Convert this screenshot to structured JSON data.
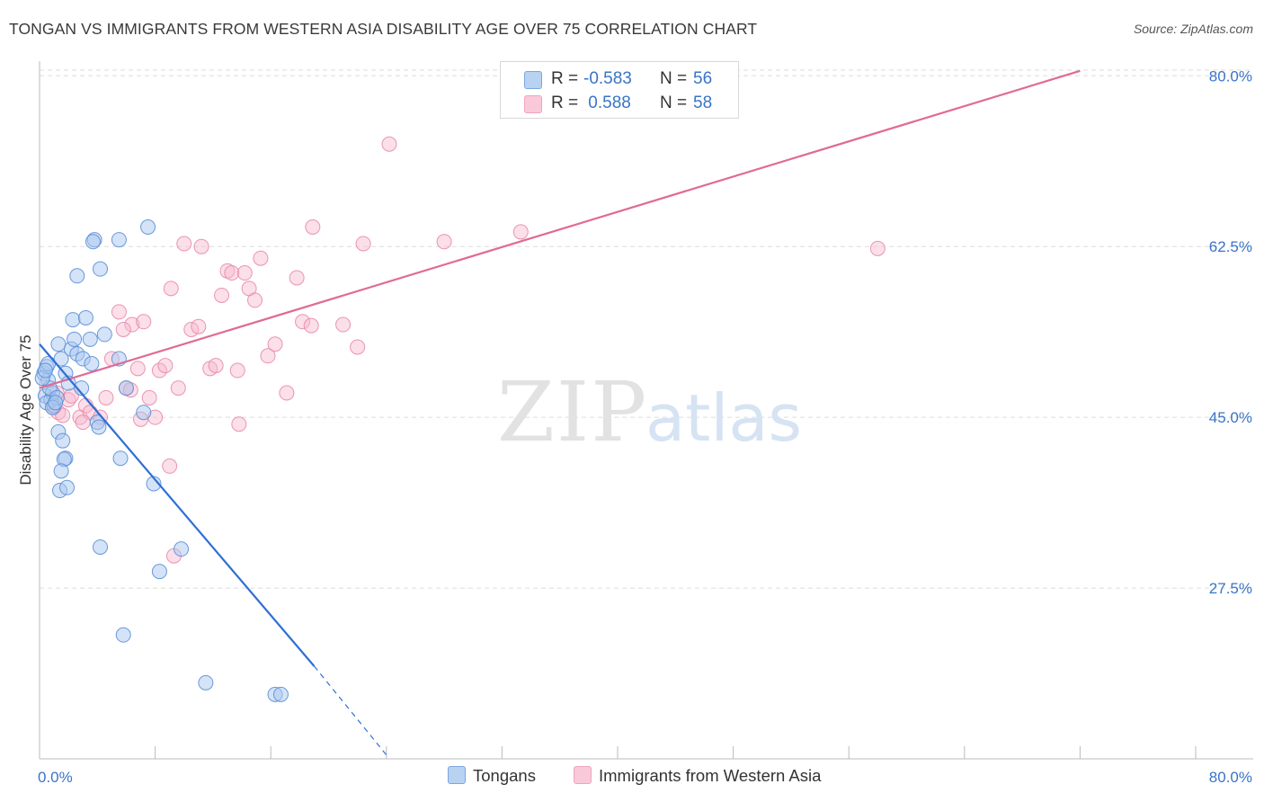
{
  "header": {
    "title": "TONGAN VS IMMIGRANTS FROM WESTERN ASIA DISABILITY AGE OVER 75 CORRELATION CHART",
    "source": "Source: ZipAtlas.com"
  },
  "legend": {
    "rows": [
      {
        "r_label": "R = ",
        "r_value": "-0.583",
        "n_label": "N = ",
        "n_value": "56"
      },
      {
        "r_label": "R = ",
        "r_value": " 0.588",
        "n_label": "N = ",
        "n_value": "58"
      }
    ]
  },
  "bottom_legend": {
    "series1": "Tongans",
    "series2": "Immigrants from Western Asia"
  },
  "watermark": {
    "zip": "ZIP",
    "atlas": "atlas"
  },
  "colors": {
    "tongans_fill": "#a9c8ef",
    "tongans_stroke": "#5b8fd6",
    "tongans_line": "#2e6fd4",
    "immigrants_fill": "#f6b9cf",
    "immigrants_stroke": "#e98aaa",
    "immigrants_line": "#e06a96",
    "axis_label": "#3a74c6",
    "grid": "#dddddd"
  },
  "chart_data": {
    "type": "scatter",
    "title": "TONGAN VS IMMIGRANTS FROM WESTERN ASIA DISABILITY AGE OVER 75 CORRELATION CHART",
    "xlabel": "",
    "ylabel": "Disability Age Over 75",
    "xlim": [
      0,
      80
    ],
    "ylim": [
      10,
      81.5
    ],
    "x_tick_labels": [
      "0.0%",
      "80.0%"
    ],
    "y_ticks": [
      27.5,
      45.0,
      62.5,
      80.0
    ],
    "y_tick_labels": [
      "27.5%",
      "45.0%",
      "62.5%",
      "80.0%"
    ],
    "grid": true,
    "legend_position": "top-center",
    "series": [
      {
        "name": "Tongans",
        "r": -0.583,
        "n": 56,
        "trend": {
          "x": [
            0,
            19
          ],
          "y": [
            52.5,
            19.5
          ],
          "dashed_to": {
            "x": 24,
            "y": 10.4
          }
        },
        "points": [
          [
            0.3,
            49.5
          ],
          [
            0.5,
            50.2
          ],
          [
            0.6,
            48.8
          ],
          [
            0.4,
            47.2
          ],
          [
            0.8,
            46.8
          ],
          [
            0.9,
            47.5
          ],
          [
            0.5,
            46.5
          ],
          [
            1.0,
            46.2
          ],
          [
            0.7,
            48.0
          ],
          [
            0.2,
            49.0
          ],
          [
            1.2,
            47.0
          ],
          [
            0.6,
            50.5
          ],
          [
            1.5,
            51.0
          ],
          [
            1.8,
            49.5
          ],
          [
            2.0,
            48.5
          ],
          [
            2.2,
            52.0
          ],
          [
            2.4,
            53.0
          ],
          [
            2.3,
            55.0
          ],
          [
            2.6,
            51.5
          ],
          [
            3.0,
            51.0
          ],
          [
            3.2,
            55.2
          ],
          [
            3.5,
            53.0
          ],
          [
            3.6,
            50.5
          ],
          [
            4.5,
            53.5
          ],
          [
            5.5,
            51.0
          ],
          [
            6.0,
            48.0
          ],
          [
            7.2,
            45.5
          ],
          [
            7.5,
            64.5
          ],
          [
            5.5,
            63.2
          ],
          [
            3.8,
            63.2
          ],
          [
            3.7,
            63.0
          ],
          [
            4.2,
            60.2
          ],
          [
            2.6,
            59.5
          ],
          [
            1.3,
            43.5
          ],
          [
            1.6,
            42.6
          ],
          [
            1.8,
            40.8
          ],
          [
            1.7,
            40.7
          ],
          [
            1.5,
            39.5
          ],
          [
            1.4,
            37.5
          ],
          [
            1.9,
            37.8
          ],
          [
            4.0,
            44.5
          ],
          [
            4.1,
            44.0
          ],
          [
            5.6,
            40.8
          ],
          [
            7.9,
            38.2
          ],
          [
            4.2,
            31.7
          ],
          [
            9.8,
            31.5
          ],
          [
            8.3,
            29.2
          ],
          [
            5.8,
            22.7
          ],
          [
            11.5,
            17.8
          ],
          [
            16.3,
            16.6
          ],
          [
            16.7,
            16.6
          ],
          [
            0.9,
            46.0
          ],
          [
            1.1,
            46.5
          ],
          [
            0.4,
            49.8
          ],
          [
            2.9,
            48.0
          ],
          [
            1.3,
            52.5
          ]
        ]
      },
      {
        "name": "Immigrants from Western Asia",
        "r": 0.588,
        "n": 58,
        "trend": {
          "x": [
            0,
            72
          ],
          "y": [
            48.0,
            80.5
          ]
        },
        "points": [
          [
            24.2,
            73.0
          ],
          [
            1.2,
            47.5
          ],
          [
            1.0,
            46.0
          ],
          [
            1.3,
            45.5
          ],
          [
            1.6,
            45.2
          ],
          [
            2.0,
            46.8
          ],
          [
            2.8,
            45.0
          ],
          [
            3.2,
            46.2
          ],
          [
            3.5,
            45.5
          ],
          [
            4.2,
            45.0
          ],
          [
            4.6,
            47.0
          ],
          [
            5.0,
            51.0
          ],
          [
            5.5,
            55.8
          ],
          [
            6.0,
            48.0
          ],
          [
            6.4,
            54.5
          ],
          [
            6.8,
            50.0
          ],
          [
            7.2,
            54.8
          ],
          [
            7.6,
            47.0
          ],
          [
            8.0,
            45.0
          ],
          [
            8.3,
            49.8
          ],
          [
            8.7,
            50.3
          ],
          [
            9.1,
            58.2
          ],
          [
            9.6,
            48.0
          ],
          [
            10.0,
            62.8
          ],
          [
            10.5,
            54.0
          ],
          [
            11.0,
            54.3
          ],
          [
            11.2,
            62.5
          ],
          [
            11.8,
            50.0
          ],
          [
            12.2,
            50.3
          ],
          [
            12.6,
            57.5
          ],
          [
            13.0,
            60.0
          ],
          [
            13.3,
            59.8
          ],
          [
            13.7,
            49.8
          ],
          [
            13.8,
            44.3
          ],
          [
            14.2,
            59.8
          ],
          [
            14.5,
            58.2
          ],
          [
            14.9,
            57.0
          ],
          [
            15.3,
            61.3
          ],
          [
            15.8,
            51.3
          ],
          [
            16.3,
            52.5
          ],
          [
            17.1,
            47.5
          ],
          [
            17.8,
            59.3
          ],
          [
            18.2,
            54.8
          ],
          [
            18.8,
            54.4
          ],
          [
            18.9,
            64.5
          ],
          [
            21.0,
            54.5
          ],
          [
            22.0,
            52.2
          ],
          [
            22.4,
            62.8
          ],
          [
            28.0,
            63.0
          ],
          [
            33.3,
            64.0
          ],
          [
            58.0,
            62.3
          ],
          [
            9.0,
            40.0
          ],
          [
            9.3,
            30.8
          ],
          [
            5.8,
            54.0
          ],
          [
            7.0,
            44.8
          ],
          [
            3.0,
            44.5
          ],
          [
            2.2,
            47.2
          ],
          [
            6.3,
            47.8
          ]
        ]
      }
    ]
  }
}
